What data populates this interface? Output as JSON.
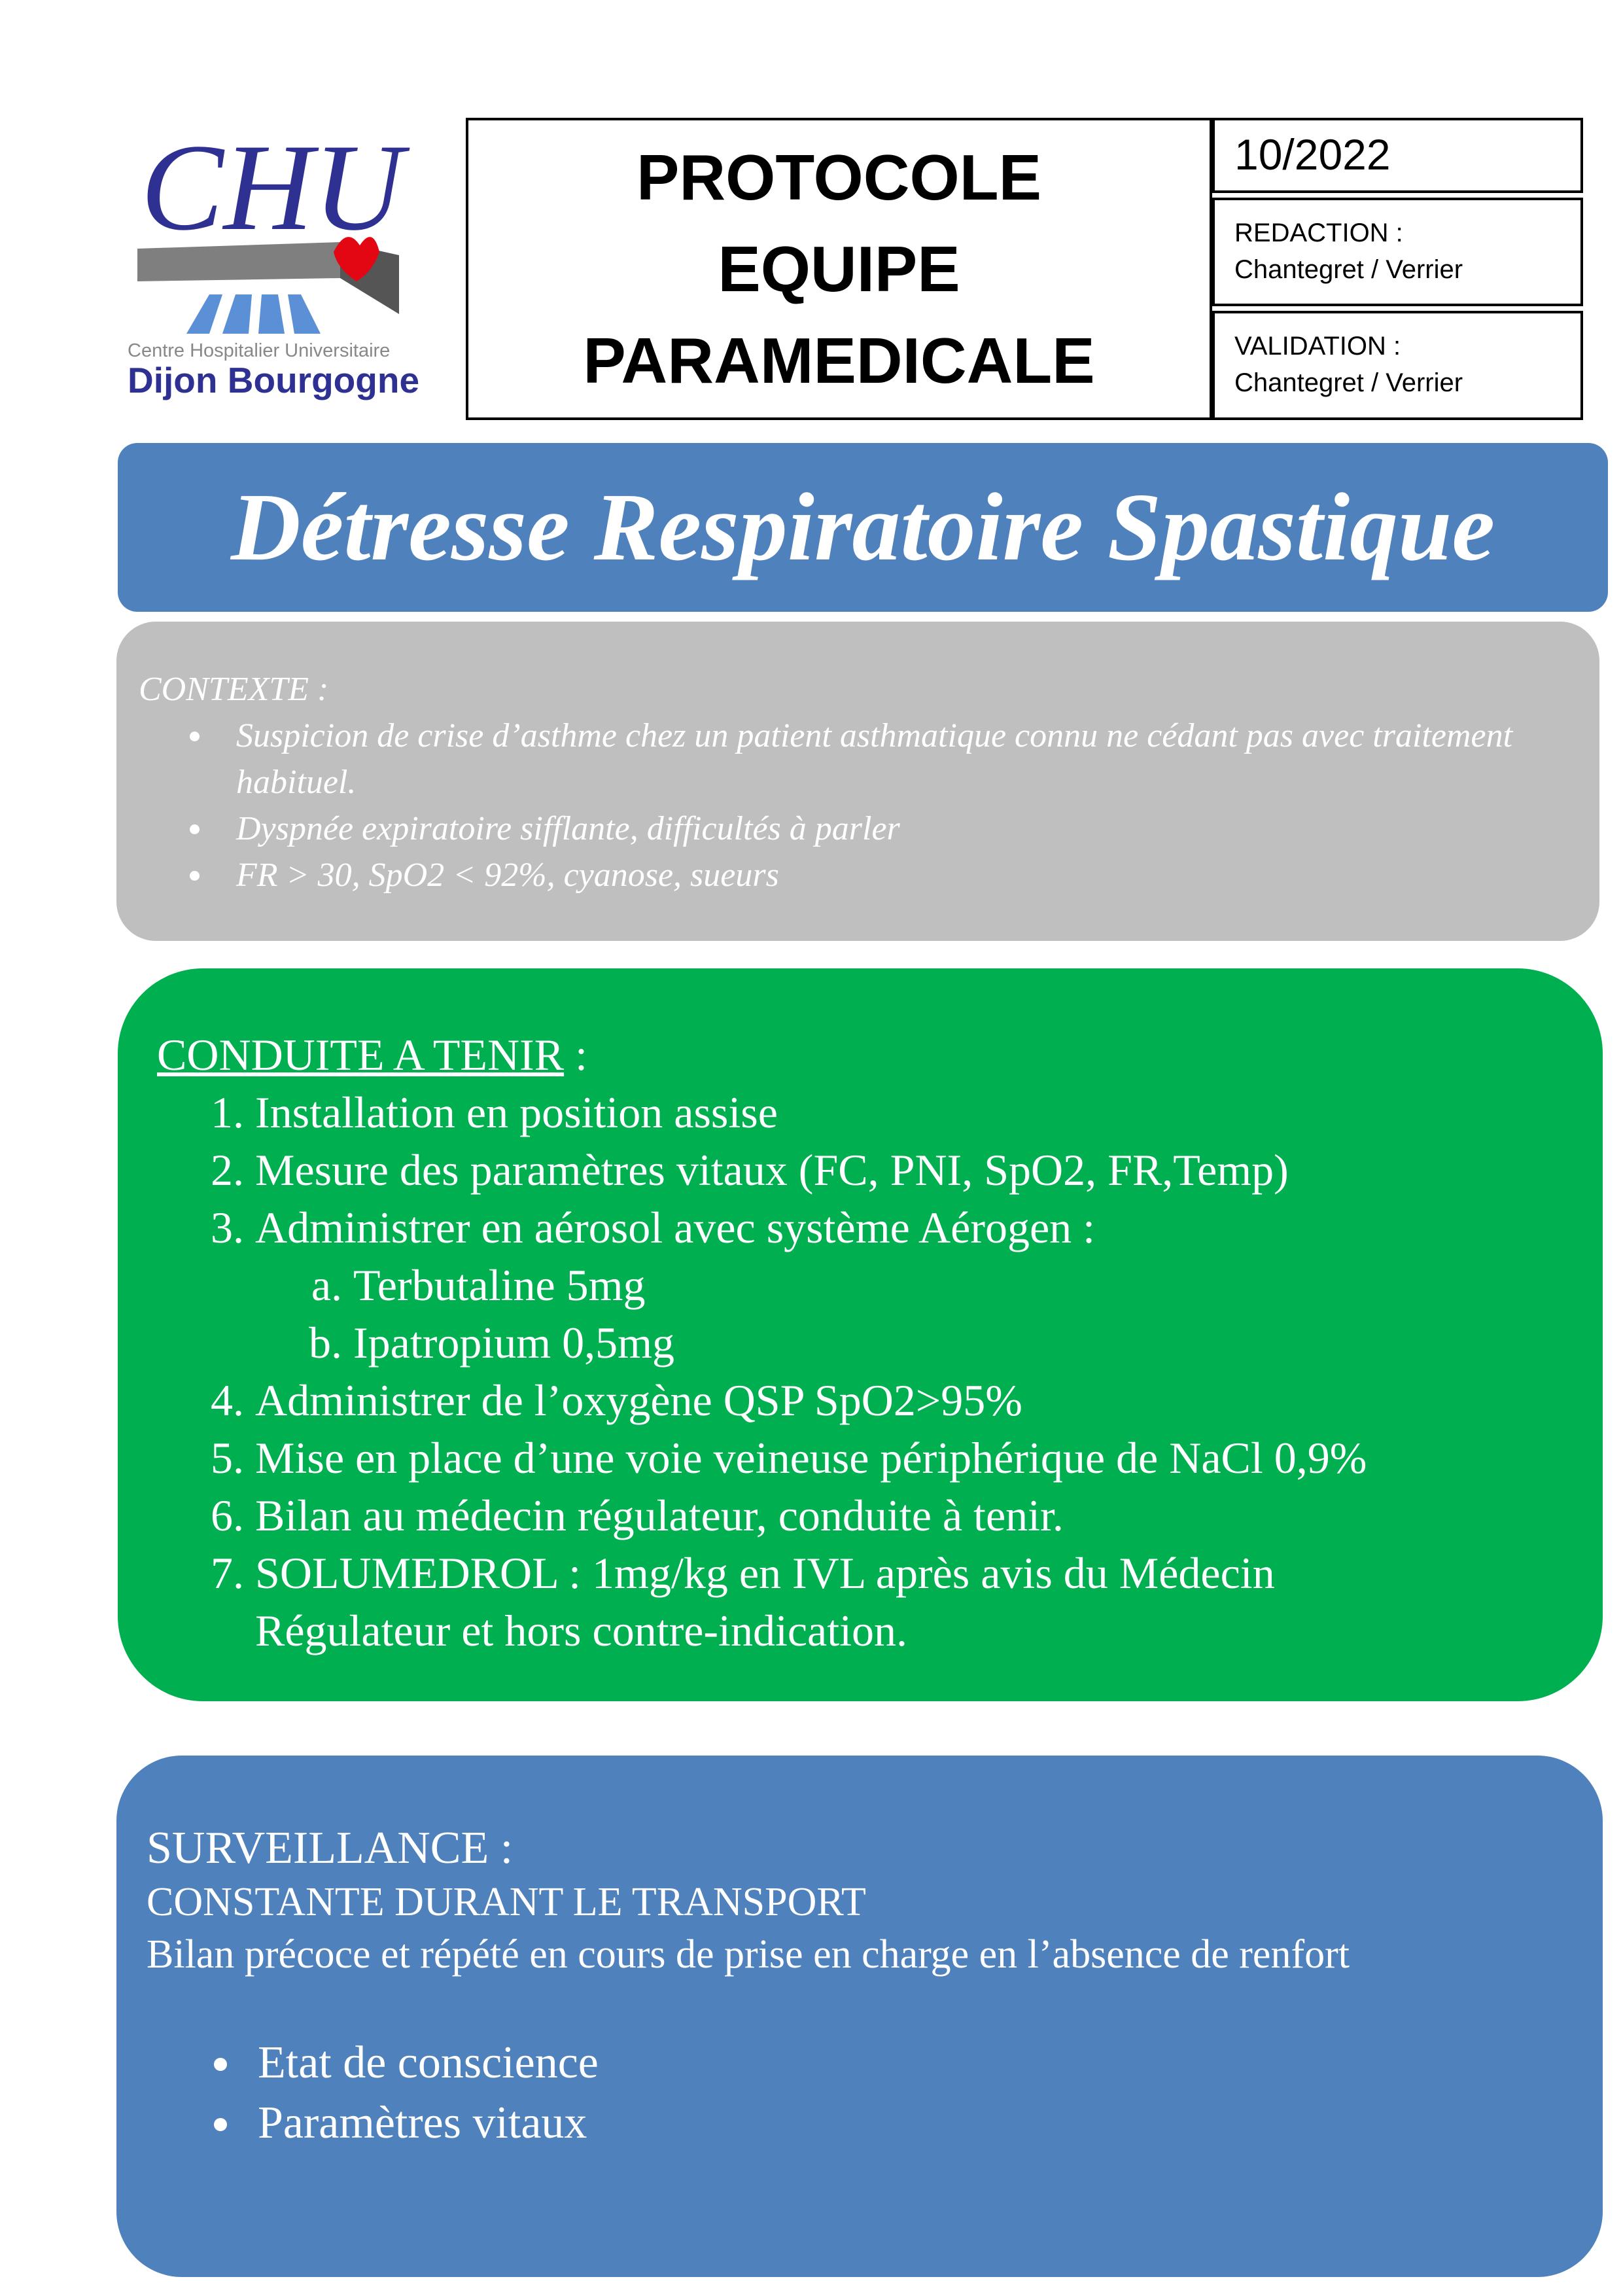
{
  "logo": {
    "top_text": "CHU",
    "line1": "Centre Hospitalier Universitaire",
    "line2": "Dijon Bourgogne",
    "colors": {
      "blue": "#2e3192",
      "grey": "#808080",
      "red": "#e30613",
      "light_blue": "#5b8fd6"
    }
  },
  "header": {
    "title_lines": [
      "PROTOCOLE",
      "EQUIPE",
      "PARAMEDICALE"
    ],
    "date": "10/2022",
    "redaction_label": "REDACTION :",
    "redaction_value": "Chantegret / Verrier",
    "validation_label": "VALIDATION :",
    "validation_value": "Chantegret / Verrier"
  },
  "banner": {
    "title": "Détresse Respiratoire Spastique",
    "color": "#4f81bd"
  },
  "contexte": {
    "label": "CONTEXTE :",
    "items": [
      "Suspicion de crise d’asthme chez un patient asthmatique connu ne cédant pas avec traitement habituel.",
      "Dyspnée expiratoire sifflante, difficultés à parler",
      "FR > 30, SpO2 < 92%, cyanose, sueurs"
    ],
    "color": "#bfbfbf"
  },
  "conduite": {
    "label": "CONDUITE A TENIR",
    "label_suffix": " :",
    "color": "#00b050",
    "items": [
      "Installation en position assise",
      "Mesure des paramètres vitaux (FC, PNI, SpO2, FR,Temp)",
      "Administrer en aérosol avec système Aérogen :",
      "Administrer de l’oxygène QSP SpO2>95%",
      "Mise en place d’une voie veineuse périphérique de NaCl 0,9%",
      "Bilan au médecin régulateur, conduite à tenir.",
      "SOLUMEDROL : 1mg/kg en IVL après avis du Médecin Régulateur et hors contre-indication."
    ],
    "subitems": [
      "Terbutaline 5mg",
      "Ipatropium 0,5mg"
    ]
  },
  "surveillance": {
    "label": "SURVEILLANCE :",
    "line1": "CONSTANTE DURANT LE TRANSPORT",
    "line2": "Bilan précoce et répété en cours de prise en charge en l’absence de renfort",
    "items": [
      "Etat de conscience",
      "Paramètres vitaux"
    ],
    "color": "#4f81bd"
  }
}
